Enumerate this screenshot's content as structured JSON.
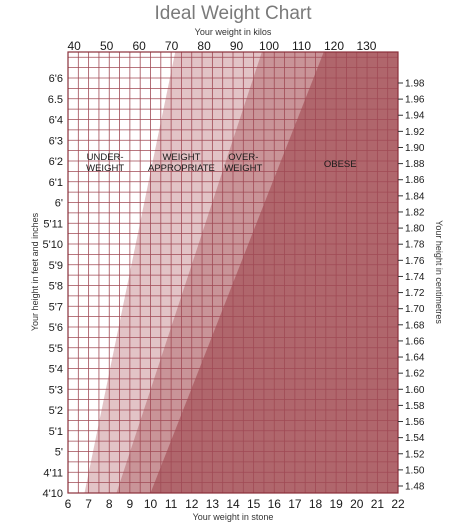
{
  "chart_data": {
    "type": "area",
    "title": "Ideal Weight Chart",
    "x_top_label": "Your weight in kilos",
    "x_bottom_label": "Your weight in stone",
    "y_left_label": "Your height in feet and inches",
    "y_right_label": "Your height in centimetres",
    "x_top_ticks": [
      "40",
      "50",
      "60",
      "70",
      "80",
      "90",
      "100",
      "110",
      "120",
      "130"
    ],
    "x_bottom_ticks": [
      "6",
      "7",
      "8",
      "9",
      "10",
      "11",
      "12",
      "13",
      "14",
      "15",
      "16",
      "17",
      "18",
      "19",
      "20",
      "21",
      "22"
    ],
    "y_left_ticks": [
      "6'6",
      "6.5",
      "6'4",
      "6'3",
      "6'2",
      "6'1",
      "6'",
      "5'11",
      "5'10",
      "5'9",
      "5'8",
      "5'7",
      "5'6",
      "5'5",
      "5'4",
      "5'3",
      "5'2",
      "5'1",
      "5'",
      "4'11",
      "4'10"
    ],
    "y_right_ticks": [
      "1.98",
      "1.96",
      "1.94",
      "1.92",
      "1.90",
      "1.88",
      "1.86",
      "1.84",
      "1.82",
      "1.80",
      "1.78",
      "1.76",
      "1.74",
      "1.72",
      "1.70",
      "1.68",
      "1.66",
      "1.64",
      "1.62",
      "1.60",
      "1.58",
      "1.56",
      "1.54",
      "1.52",
      "1.50",
      "1.48"
    ],
    "xlim_stone": [
      6,
      22
    ],
    "ylim_height_index": [
      0,
      20
    ],
    "grid": true,
    "zones": [
      {
        "label": "UNDER-\nWEIGHT",
        "bottom_stone": 6.0,
        "top_stone": 6.0,
        "color": "#ffffff"
      },
      {
        "label": "WEIGHT\nAPPROPRIATE",
        "bottom_stone": 6.8,
        "top_stone": 11.2,
        "color": "#e2c3c6"
      },
      {
        "label": "OVER-\nWEIGHT",
        "bottom_stone": 8.35,
        "top_stone": 15.4,
        "color": "#c99498"
      },
      {
        "label": "OBESE",
        "bottom_stone": 10.0,
        "top_stone": 18.4,
        "color": "#b0666c"
      }
    ]
  }
}
